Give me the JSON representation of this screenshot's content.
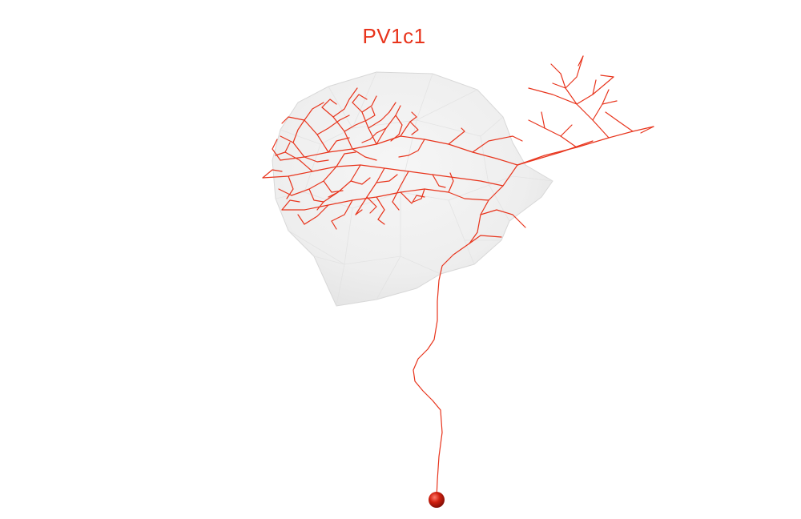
{
  "title": "PV1c1",
  "colors": {
    "neuron": "#e8341c",
    "soma": "#c4180c",
    "neuropil_fill": "#ededed",
    "neuropil_edge": "#dcdcdc",
    "background": "#ffffff"
  }
}
